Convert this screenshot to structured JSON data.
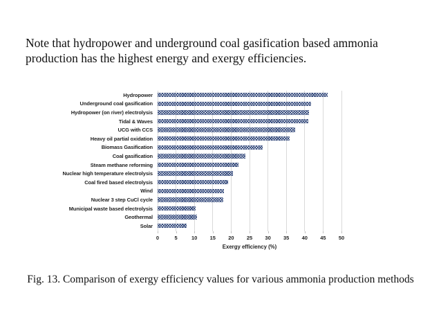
{
  "page": {
    "note_line1": "Note that hydropower and underground coal gasification based ammonia",
    "note_line2": "production has the highest energy and exergy efficiencies.",
    "caption": "Fig. 13. Comparison of exergy efficiency values for various ammonia production methods"
  },
  "chart_data": {
    "type": "bar",
    "orientation": "horizontal",
    "title": "",
    "xlabel": "Exergy efficiency (%)",
    "ylabel": "",
    "xlim": [
      0,
      50
    ],
    "xticks": [
      0,
      5,
      10,
      15,
      20,
      25,
      30,
      35,
      40,
      45,
      50
    ],
    "grid": true,
    "bar_color": "#33497b",
    "bar_pattern": "diagonal-crosshatch",
    "gridline_color": "#d9d9d9",
    "categories": [
      "Hydropower",
      "Underground coal gasification",
      "Hydropower (on river) electrolysis",
      "Tidal & Waves",
      "UCG with CCS",
      "Heavy oil partial oxidation",
      "Biomass Gasification",
      "Coal gasification",
      "Steam methane reforming",
      "Nuclear high temperature electrolysis",
      "Coal fired based electrolysis",
      "Wind",
      "Nuclear 3 step CuCl cycle",
      "Municipal waste based electrolysis",
      "Geothermal",
      "Solar"
    ],
    "values": [
      46.2,
      41.7,
      41.1,
      41.0,
      37.4,
      35.9,
      28.6,
      23.8,
      21.9,
      20.4,
      19.1,
      18.1,
      17.8,
      10.3,
      10.7,
      7.9
    ]
  }
}
